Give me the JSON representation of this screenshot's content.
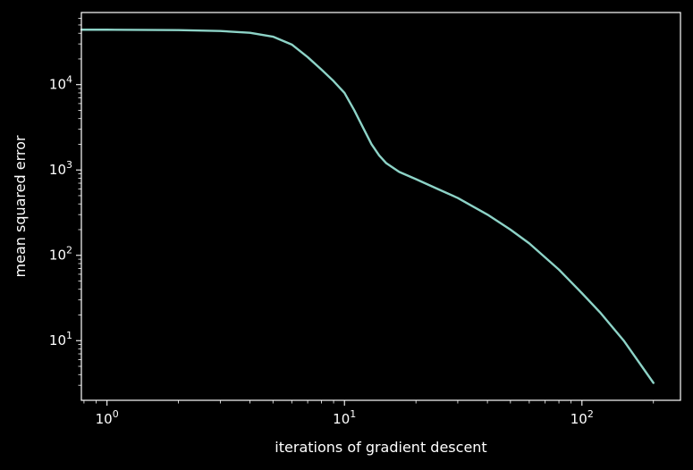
{
  "chart_data": {
    "type": "line",
    "title": "",
    "xlabel": "iterations of gradient descent",
    "ylabel": "mean squared error",
    "xscale": "log",
    "yscale": "log",
    "xlim": [
      0.78,
      260
    ],
    "ylim": [
      2.0,
      70000
    ],
    "grid": false,
    "legend": "none",
    "colors": {
      "background": "#000000",
      "axes": "#ffffff",
      "text": "#ffffff",
      "line": "#8dd3c7"
    },
    "x_ticks": [
      {
        "base": "10",
        "exp": "0",
        "value": 1
      },
      {
        "base": "10",
        "exp": "1",
        "value": 10
      },
      {
        "base": "10",
        "exp": "2",
        "value": 100
      }
    ],
    "y_ticks": [
      {
        "base": "10",
        "exp": "1",
        "value": 10
      },
      {
        "base": "10",
        "exp": "2",
        "value": 100
      },
      {
        "base": "10",
        "exp": "3",
        "value": 1000
      },
      {
        "base": "10",
        "exp": "4",
        "value": 10000
      }
    ],
    "series": [
      {
        "x": [
          0.78,
          1,
          2,
          3,
          4,
          5,
          6,
          7,
          8,
          9,
          10,
          11,
          12,
          13,
          14,
          15,
          17,
          20,
          25,
          30,
          40,
          50,
          60,
          80,
          100,
          120,
          150,
          200
        ],
        "y": [
          44000,
          44000,
          43500,
          42500,
          40500,
          36500,
          29500,
          21000,
          15000,
          11000,
          8000,
          5000,
          3100,
          2000,
          1480,
          1200,
          950,
          780,
          590,
          470,
          300,
          200,
          138,
          68,
          36,
          21,
          10,
          3.2
        ]
      }
    ]
  }
}
